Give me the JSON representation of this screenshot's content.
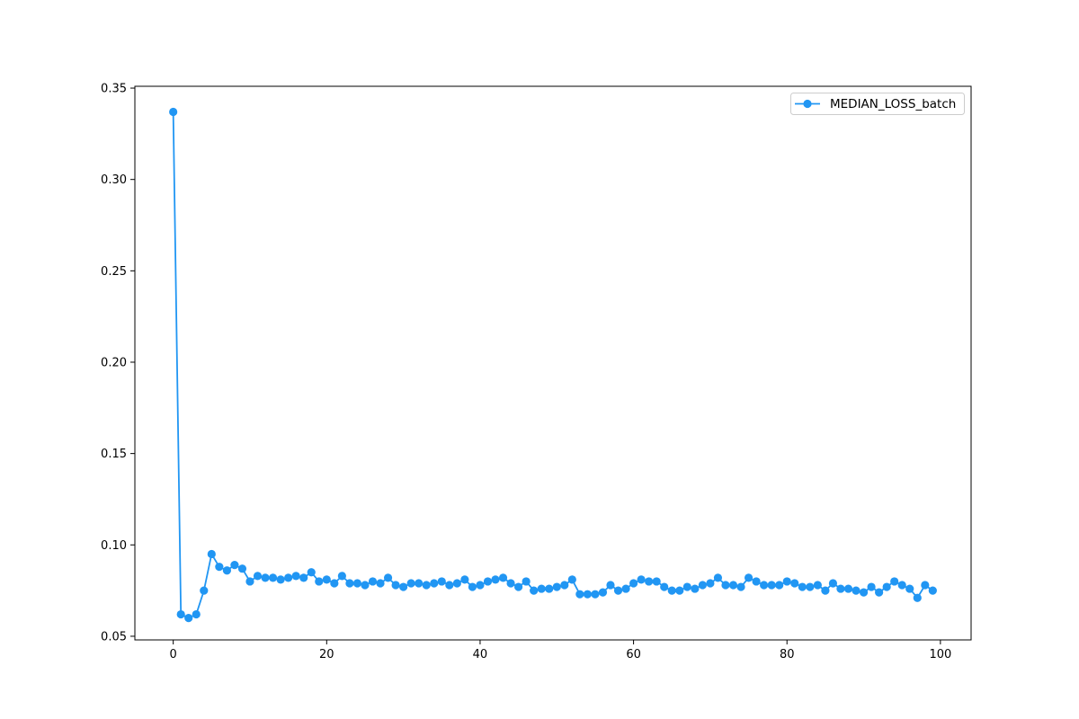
{
  "chart_data": {
    "type": "line",
    "title": "",
    "xlabel": "",
    "ylabel": "",
    "xlim": [
      -5,
      104
    ],
    "ylim": [
      0.048,
      0.351
    ],
    "xticks": [
      0,
      20,
      40,
      60,
      80,
      100
    ],
    "xtick_labels": [
      "0",
      "20",
      "40",
      "60",
      "80",
      "100"
    ],
    "yticks": [
      0.05,
      0.1,
      0.15,
      0.2,
      0.25,
      0.3,
      0.35
    ],
    "ytick_labels": [
      "0.05",
      "0.10",
      "0.15",
      "0.20",
      "0.25",
      "0.30",
      "0.35"
    ],
    "grid": false,
    "legend_position": "top-right",
    "series": [
      {
        "name": "MEDIAN_LOSS_batch",
        "color": "#2196f3",
        "marker": "circle",
        "x": [
          0,
          1,
          2,
          3,
          4,
          5,
          6,
          7,
          8,
          9,
          10,
          11,
          12,
          13,
          14,
          15,
          16,
          17,
          18,
          19,
          20,
          21,
          22,
          23,
          24,
          25,
          26,
          27,
          28,
          29,
          30,
          31,
          32,
          33,
          34,
          35,
          36,
          37,
          38,
          39,
          40,
          41,
          42,
          43,
          44,
          45,
          46,
          47,
          48,
          49,
          50,
          51,
          52,
          53,
          54,
          55,
          56,
          57,
          58,
          59,
          60,
          61,
          62,
          63,
          64,
          65,
          66,
          67,
          68,
          69,
          70,
          71,
          72,
          73,
          74,
          75,
          76,
          77,
          78,
          79,
          80,
          81,
          82,
          83,
          84,
          85,
          86,
          87,
          88,
          89,
          90,
          91,
          92,
          93,
          94,
          95,
          96,
          97,
          98,
          99
        ],
        "values": [
          0.337,
          0.062,
          0.06,
          0.062,
          0.075,
          0.095,
          0.088,
          0.086,
          0.089,
          0.087,
          0.08,
          0.083,
          0.082,
          0.082,
          0.081,
          0.082,
          0.083,
          0.082,
          0.085,
          0.08,
          0.081,
          0.079,
          0.083,
          0.079,
          0.079,
          0.078,
          0.08,
          0.079,
          0.082,
          0.078,
          0.077,
          0.079,
          0.079,
          0.078,
          0.079,
          0.08,
          0.078,
          0.079,
          0.081,
          0.077,
          0.078,
          0.08,
          0.081,
          0.082,
          0.079,
          0.077,
          0.08,
          0.075,
          0.076,
          0.076,
          0.077,
          0.078,
          0.081,
          0.073,
          0.073,
          0.073,
          0.074,
          0.078,
          0.075,
          0.076,
          0.079,
          0.081,
          0.08,
          0.08,
          0.077,
          0.075,
          0.075,
          0.077,
          0.076,
          0.078,
          0.079,
          0.082,
          0.078,
          0.078,
          0.077,
          0.082,
          0.08,
          0.078,
          0.078,
          0.078,
          0.08,
          0.079,
          0.077,
          0.077,
          0.078,
          0.075,
          0.079,
          0.076,
          0.076,
          0.075,
          0.074,
          0.077,
          0.074,
          0.077,
          0.08,
          0.078,
          0.076,
          0.071,
          0.078,
          0.075
        ]
      }
    ]
  }
}
